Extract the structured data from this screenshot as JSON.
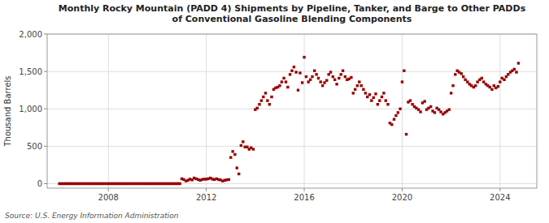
{
  "chart_data": {
    "type": "scatter",
    "title": "Monthly Rocky Mountain (PADD 4) Shipments by Pipeline, Tanker, and Barge to Other PADDs\nof Conventional Gasoline Blending Components",
    "y_label": "Thousand Barrels",
    "annotations": [
      "Source: U.S. Energy Information Administration"
    ],
    "color": "#990000",
    "marker": "square",
    "grid": true,
    "xlim": [
      2005.5,
      2025.5
    ],
    "xticks": [
      2008,
      2012,
      2016,
      2020,
      2024
    ],
    "ylim": [
      -60,
      2000
    ],
    "yticks": [
      0,
      500,
      {
        "value": 1000,
        "label": "1,000"
      },
      {
        "value": 1500,
        "label": "1,500"
      },
      {
        "value": 2000,
        "label": "2,000"
      }
    ],
    "x": [
      2006.0,
      2006.08,
      2006.17,
      2006.25,
      2006.33,
      2006.42,
      2006.5,
      2006.58,
      2006.67,
      2006.75,
      2006.83,
      2006.92,
      2007.0,
      2007.08,
      2007.17,
      2007.25,
      2007.33,
      2007.42,
      2007.5,
      2007.58,
      2007.67,
      2007.75,
      2007.83,
      2007.92,
      2008.0,
      2008.08,
      2008.17,
      2008.25,
      2008.33,
      2008.42,
      2008.5,
      2008.58,
      2008.67,
      2008.75,
      2008.83,
      2008.92,
      2009.0,
      2009.08,
      2009.17,
      2009.25,
      2009.33,
      2009.42,
      2009.5,
      2009.58,
      2009.67,
      2009.75,
      2009.83,
      2009.92,
      2010.0,
      2010.08,
      2010.17,
      2010.25,
      2010.33,
      2010.42,
      2010.5,
      2010.58,
      2010.67,
      2010.75,
      2010.83,
      2010.92,
      2011.0,
      2011.08,
      2011.17,
      2011.25,
      2011.33,
      2011.42,
      2011.5,
      2011.58,
      2011.67,
      2011.75,
      2011.83,
      2011.92,
      2012.0,
      2012.08,
      2012.17,
      2012.25,
      2012.33,
      2012.42,
      2012.5,
      2012.58,
      2012.67,
      2012.75,
      2012.83,
      2012.92,
      2013.0,
      2013.08,
      2013.17,
      2013.25,
      2013.33,
      2013.42,
      2013.5,
      2013.58,
      2013.67,
      2013.75,
      2013.83,
      2013.92,
      2014.0,
      2014.08,
      2014.17,
      2014.25,
      2014.33,
      2014.42,
      2014.5,
      2014.58,
      2014.67,
      2014.75,
      2014.83,
      2014.92,
      2015.0,
      2015.08,
      2015.17,
      2015.25,
      2015.33,
      2015.42,
      2015.5,
      2015.58,
      2015.67,
      2015.75,
      2015.83,
      2015.92,
      2016.0,
      2016.08,
      2016.17,
      2016.25,
      2016.33,
      2016.42,
      2016.5,
      2016.58,
      2016.67,
      2016.75,
      2016.83,
      2016.92,
      2017.0,
      2017.08,
      2017.17,
      2017.25,
      2017.33,
      2017.42,
      2017.5,
      2017.58,
      2017.67,
      2017.75,
      2017.83,
      2017.92,
      2018.0,
      2018.08,
      2018.17,
      2018.25,
      2018.33,
      2018.42,
      2018.5,
      2018.58,
      2018.67,
      2018.75,
      2018.83,
      2018.92,
      2019.0,
      2019.08,
      2019.17,
      2019.25,
      2019.33,
      2019.42,
      2019.5,
      2019.58,
      2019.67,
      2019.75,
      2019.83,
      2019.92,
      2020.0,
      2020.08,
      2020.17,
      2020.25,
      2020.33,
      2020.42,
      2020.5,
      2020.58,
      2020.67,
      2020.75,
      2020.83,
      2020.92,
      2021.0,
      2021.08,
      2021.17,
      2021.25,
      2021.33,
      2021.42,
      2021.5,
      2021.58,
      2021.67,
      2021.75,
      2021.83,
      2021.92,
      2022.0,
      2022.08,
      2022.17,
      2022.25,
      2022.33,
      2022.42,
      2022.5,
      2022.58,
      2022.67,
      2022.75,
      2022.83,
      2022.92,
      2023.0,
      2023.08,
      2023.17,
      2023.25,
      2023.33,
      2023.42,
      2023.5,
      2023.58,
      2023.67,
      2023.75,
      2023.83,
      2023.92,
      2024.0,
      2024.08,
      2024.17,
      2024.25,
      2024.33,
      2024.42,
      2024.5,
      2024.58,
      2024.67,
      2024.75
    ],
    "values": [
      0,
      0,
      0,
      0,
      0,
      0,
      0,
      0,
      0,
      0,
      0,
      0,
      0,
      0,
      0,
      0,
      0,
      0,
      0,
      0,
      0,
      0,
      0,
      0,
      0,
      0,
      0,
      0,
      0,
      0,
      0,
      0,
      0,
      0,
      0,
      0,
      0,
      0,
      0,
      0,
      0,
      0,
      0,
      0,
      0,
      0,
      0,
      0,
      0,
      0,
      0,
      0,
      0,
      0,
      0,
      0,
      0,
      0,
      0,
      0,
      65,
      55,
      35,
      45,
      60,
      50,
      75,
      65,
      55,
      45,
      55,
      60,
      60,
      65,
      75,
      60,
      55,
      65,
      55,
      50,
      35,
      45,
      50,
      55,
      350,
      430,
      390,
      210,
      130,
      510,
      560,
      490,
      490,
      460,
      480,
      460,
      990,
      1010,
      1060,
      1110,
      1160,
      1210,
      1110,
      1060,
      1160,
      1260,
      1280,
      1290,
      1310,
      1360,
      1410,
      1360,
      1290,
      1460,
      1510,
      1560,
      1490,
      1250,
      1480,
      1350,
      1690,
      1430,
      1360,
      1390,
      1430,
      1510,
      1460,
      1410,
      1360,
      1310,
      1350,
      1380,
      1460,
      1490,
      1430,
      1390,
      1330,
      1410,
      1460,
      1510,
      1430,
      1390,
      1400,
      1420,
      1210,
      1260,
      1310,
      1360,
      1310,
      1260,
      1210,
      1160,
      1190,
      1110,
      1150,
      1200,
      1060,
      1110,
      1160,
      1210,
      1110,
      1060,
      810,
      790,
      860,
      910,
      950,
      1000,
      1360,
      1510,
      660,
      1090,
      1110,
      1060,
      1030,
      1010,
      990,
      960,
      1080,
      1100,
      990,
      1010,
      1030,
      970,
      950,
      1010,
      990,
      960,
      930,
      950,
      970,
      990,
      1210,
      1310,
      1460,
      1510,
      1490,
      1470,
      1430,
      1390,
      1360,
      1330,
      1310,
      1290,
      1310,
      1360,
      1390,
      1410,
      1360,
      1330,
      1310,
      1290,
      1260,
      1310,
      1280,
      1300,
      1360,
      1410,
      1390,
      1430,
      1460,
      1490,
      1510,
      1530,
      1490,
      1610
    ]
  }
}
